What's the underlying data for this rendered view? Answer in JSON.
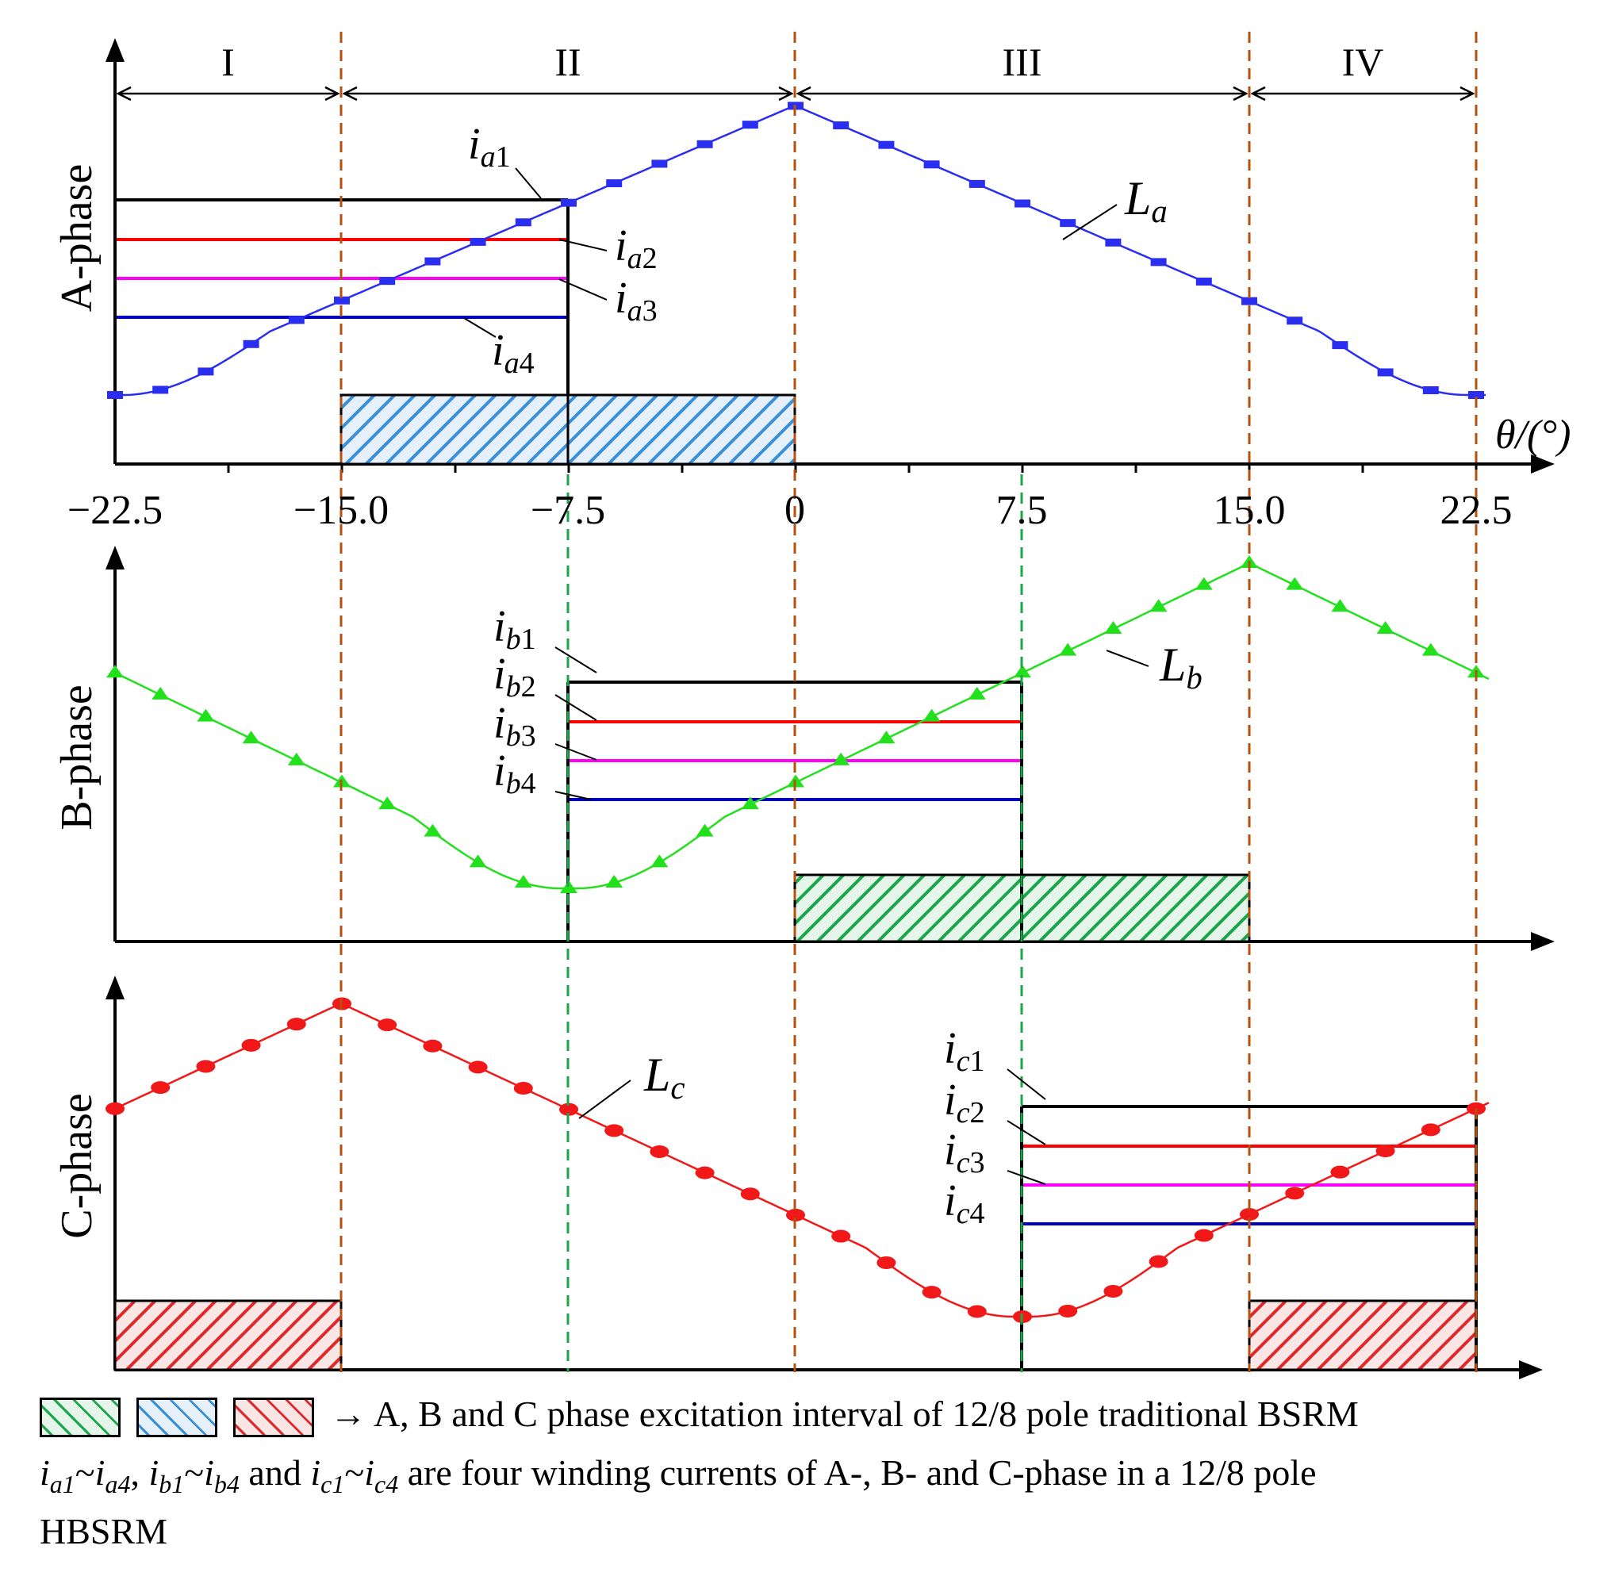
{
  "regions": [
    "I",
    "II",
    "III",
    "IV"
  ],
  "x_ticks": [
    "−22.5",
    "−15.0",
    "−7.5",
    "0",
    "7.5",
    "15.0",
    "22.5"
  ],
  "x_axis_label": "θ/(°)",
  "phases": {
    "A": {
      "ylabel": "A-phase",
      "inductance": {
        "sym": "L",
        "sub": "a"
      },
      "currents": [
        {
          "sym": "i",
          "sub": "a",
          "num": "1"
        },
        {
          "sym": "i",
          "sub": "a",
          "num": "2"
        },
        {
          "sym": "i",
          "sub": "a",
          "num": "3"
        },
        {
          "sym": "i",
          "sub": "a",
          "num": "4"
        }
      ]
    },
    "B": {
      "ylabel": "B-phase",
      "inductance": {
        "sym": "L",
        "sub": "b"
      },
      "currents": [
        {
          "sym": "i",
          "sub": "b",
          "num": "1"
        },
        {
          "sym": "i",
          "sub": "b",
          "num": "2"
        },
        {
          "sym": "i",
          "sub": "b",
          "num": "3"
        },
        {
          "sym": "i",
          "sub": "b",
          "num": "4"
        }
      ]
    },
    "C": {
      "ylabel": "C-phase",
      "inductance": {
        "sym": "L",
        "sub": "c"
      },
      "currents": [
        {
          "sym": "i",
          "sub": "c",
          "num": "1"
        },
        {
          "sym": "i",
          "sub": "c",
          "num": "2"
        },
        {
          "sym": "i",
          "sub": "c",
          "num": "3"
        },
        {
          "sym": "i",
          "sub": "c",
          "num": "4"
        }
      ]
    }
  },
  "colors": {
    "A": "#2a2ef0",
    "B": "#22e01c",
    "C": "#f01818",
    "i1": "#000000",
    "i2": "#ff0000",
    "i3": "#ff00ff",
    "i4": "#0000c0",
    "divider": "#b5500e",
    "green_divider": "#19a64a"
  },
  "legend": {
    "line1_text": "→ A, B and C phase excitation interval of 12/8 pole traditional  BSRM",
    "line2": {
      "i": "i",
      "a1": "a1",
      "tilde": "~",
      "a4": "a4",
      "sep": ", ",
      "b1": "b1",
      "b4": "b4",
      "and": " and ",
      "c1": "c1",
      "c4": "c4",
      "rest": " are four winding currents of A-, B- and C-phase in a 12/8 pole"
    },
    "line3": "HBSRM"
  }
}
